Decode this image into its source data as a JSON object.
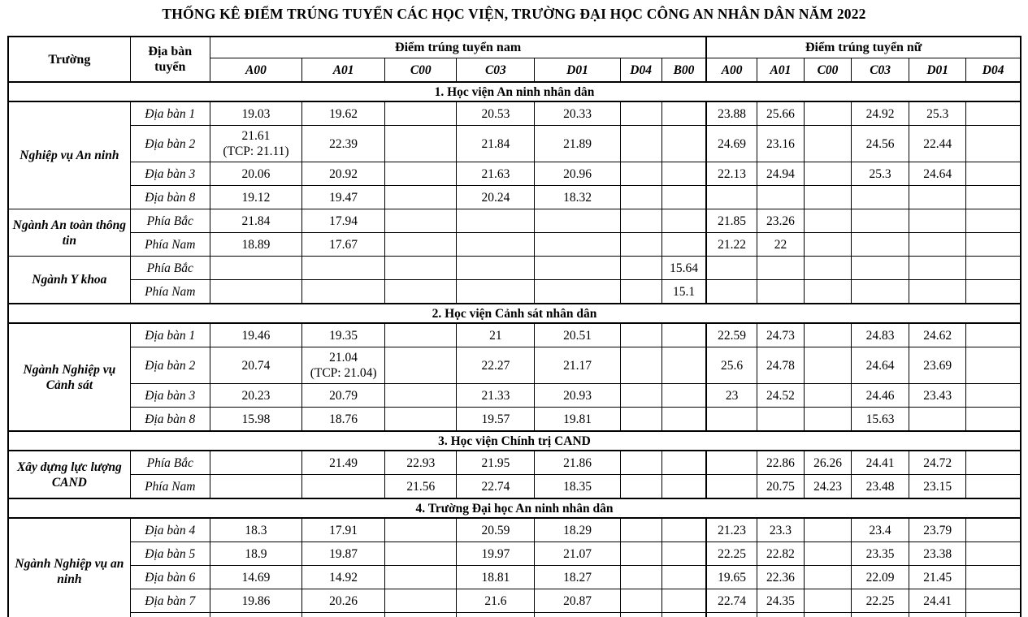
{
  "title": "THỐNG KÊ ĐIỂM TRÚNG TUYỂN CÁC HỌC VIỆN, TRƯỜNG ĐẠI HỌC CÔNG AN NHÂN DÂN NĂM 2022",
  "table": {
    "header": {
      "school": "Trường",
      "area": "Địa bàn tuyển",
      "male_group": "Điểm trúng tuyển nam",
      "female_group": "Điểm trúng tuyển nữ",
      "male_cols": [
        "A00",
        "A01",
        "C00",
        "C03",
        "D01",
        "D04",
        "B00"
      ],
      "female_cols": [
        "A00",
        "A01",
        "C00",
        "C03",
        "D01",
        "D04"
      ]
    },
    "sections": [
      {
        "title": "1. Học viện An ninh nhân dân",
        "groups": [
          {
            "name": "Nghiệp vụ An ninh",
            "rows": [
              {
                "area": "Địa bàn 1",
                "cells": [
                  "19.03",
                  "19.62",
                  "",
                  "20.53",
                  "20.33",
                  "",
                  "",
                  "23.88",
                  "25.66",
                  "",
                  "24.92",
                  "25.3",
                  ""
                ]
              },
              {
                "area": "Địa bàn 2",
                "cells": [
                  "21.61\n(TCP: 21.11)",
                  "22.39",
                  "",
                  "21.84",
                  "21.89",
                  "",
                  "",
                  "24.69",
                  "23.16",
                  "",
                  "24.56",
                  "22.44",
                  ""
                ]
              },
              {
                "area": "Địa bàn 3",
                "cells": [
                  "20.06",
                  "20.92",
                  "",
                  "21.63",
                  "20.96",
                  "",
                  "",
                  "22.13",
                  "24.94",
                  "",
                  "25.3",
                  "24.64",
                  ""
                ]
              },
              {
                "area": "Địa bàn 8",
                "cells": [
                  "19.12",
                  "19.47",
                  "",
                  "20.24",
                  "18.32",
                  "",
                  "",
                  "",
                  "",
                  "",
                  "",
                  "",
                  ""
                ]
              }
            ]
          },
          {
            "name": "Ngành An toàn thông tin",
            "rows": [
              {
                "area": "Phía Bắc",
                "cells": [
                  "21.84",
                  "17.94",
                  "",
                  "",
                  "",
                  "",
                  "",
                  "21.85",
                  "23.26",
                  "",
                  "",
                  "",
                  ""
                ]
              },
              {
                "area": "Phía Nam",
                "cells": [
                  "18.89",
                  "17.67",
                  "",
                  "",
                  "",
                  "",
                  "",
                  "21.22",
                  "22",
                  "",
                  "",
                  "",
                  ""
                ]
              }
            ]
          },
          {
            "name": "Ngành Y khoa",
            "rows": [
              {
                "area": "Phía Bắc",
                "cells": [
                  "",
                  "",
                  "",
                  "",
                  "",
                  "",
                  "15.64",
                  "",
                  "",
                  "",
                  "",
                  "",
                  ""
                ]
              },
              {
                "area": "Phía Nam",
                "cells": [
                  "",
                  "",
                  "",
                  "",
                  "",
                  "",
                  "15.1",
                  "",
                  "",
                  "",
                  "",
                  "",
                  ""
                ]
              }
            ]
          }
        ]
      },
      {
        "title": "2. Học viện Cảnh sát nhân dân",
        "groups": [
          {
            "name": "Ngành Nghiệp vụ Cảnh sát",
            "rows": [
              {
                "area": "Địa bàn 1",
                "cells": [
                  "19.46",
                  "19.35",
                  "",
                  "21",
                  "20.51",
                  "",
                  "",
                  "22.59",
                  "24.73",
                  "",
                  "24.83",
                  "24.62",
                  ""
                ]
              },
              {
                "area": "Địa bàn 2",
                "cells": [
                  "20.74",
                  "21.04\n(TCP: 21.04)",
                  "",
                  "22.27",
                  "21.17",
                  "",
                  "",
                  "25.6",
                  "24.78",
                  "",
                  "24.64",
                  "23.69",
                  ""
                ]
              },
              {
                "area": "Địa bàn 3",
                "cells": [
                  "20.23",
                  "20.79",
                  "",
                  "21.33",
                  "20.93",
                  "",
                  "",
                  "23",
                  "24.52",
                  "",
                  "24.46",
                  "23.43",
                  ""
                ]
              },
              {
                "area": "Địa bàn 8",
                "cells": [
                  "15.98",
                  "18.76",
                  "",
                  "19.57",
                  "19.81",
                  "",
                  "",
                  "",
                  "",
                  "",
                  "15.63",
                  "",
                  ""
                ]
              }
            ]
          }
        ]
      },
      {
        "title": "3. Học viện Chính trị CAND",
        "groups": [
          {
            "name": "Xây dựng lực lượng CAND",
            "rows": [
              {
                "area": "Phía Bắc",
                "cells": [
                  "",
                  "21.49",
                  "22.93",
                  "21.95",
                  "21.86",
                  "",
                  "",
                  "",
                  "22.86",
                  "26.26",
                  "24.41",
                  "24.72",
                  ""
                ]
              },
              {
                "area": "Phía Nam",
                "cells": [
                  "",
                  "",
                  "21.56",
                  "22.74",
                  "18.35",
                  "",
                  "",
                  "",
                  "20.75",
                  "24.23",
                  "23.48",
                  "23.15",
                  ""
                ]
              }
            ]
          }
        ]
      },
      {
        "title": "4. Trường Đại học An ninh nhân dân",
        "groups": [
          {
            "name": "Ngành Nghiệp vụ an ninh",
            "rows": [
              {
                "area": "Địa bàn 4",
                "cells": [
                  "18.3",
                  "17.91",
                  "",
                  "20.59",
                  "18.29",
                  "",
                  "",
                  "21.23",
                  "23.3",
                  "",
                  "23.4",
                  "23.79",
                  ""
                ]
              },
              {
                "area": "Địa bàn 5",
                "cells": [
                  "18.9",
                  "19.87",
                  "",
                  "19.97",
                  "21.07",
                  "",
                  "",
                  "22.25",
                  "22.82",
                  "",
                  "23.35",
                  "23.38",
                  ""
                ]
              },
              {
                "area": "Địa bàn 6",
                "cells": [
                  "14.69",
                  "14.92",
                  "",
                  "18.81",
                  "18.27",
                  "",
                  "",
                  "19.65",
                  "22.36",
                  "",
                  "22.09",
                  "21.45",
                  ""
                ]
              },
              {
                "area": "Địa bàn 7",
                "cells": [
                  "19.86",
                  "20.26",
                  "",
                  "21.6",
                  "20.87",
                  "",
                  "",
                  "22.74",
                  "24.35",
                  "",
                  "22.25",
                  "24.41",
                  ""
                ]
              },
              {
                "area": "",
                "cells": [
                  "",
                  "",
                  "",
                  "",
                  "",
                  "",
                  "",
                  "",
                  "",
                  "",
                  "",
                  "",
                  ""
                ]
              }
            ]
          }
        ]
      }
    ]
  }
}
